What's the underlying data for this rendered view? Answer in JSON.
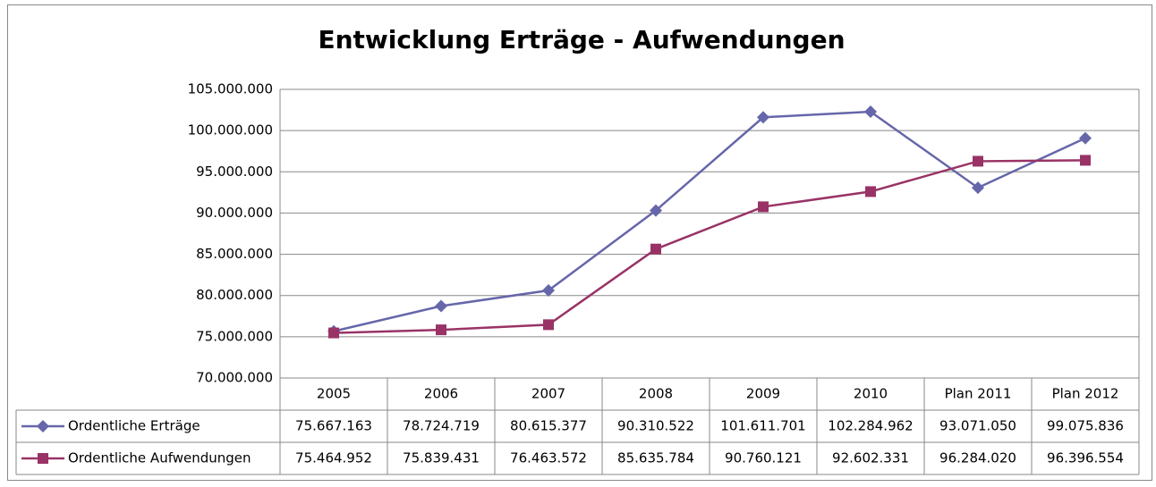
{
  "chart_data": {
    "type": "line",
    "title": "Entwicklung Erträge - Aufwendungen",
    "categories": [
      "2005",
      "2006",
      "2007",
      "2008",
      "2009",
      "2010",
      "Plan 2011",
      "Plan 2012"
    ],
    "series": [
      {
        "name": "Ordentliche Erträge",
        "color": "#6666aa",
        "marker": "diamond",
        "values": [
          75667163,
          78724719,
          80615377,
          90310522,
          101611701,
          102284962,
          93071050,
          99075836
        ],
        "value_labels": [
          "75.667.163",
          "78.724.719",
          "80.615.377",
          "90.310.522",
          "101.611.701",
          "102.284.962",
          "93.071.050",
          "99.075.836"
        ]
      },
      {
        "name": "Ordentliche Aufwendungen",
        "color": "#993366",
        "marker": "square",
        "values": [
          75464952,
          75839431,
          76463572,
          85635784,
          90760121,
          92602331,
          96284020,
          96396554
        ],
        "value_labels": [
          "75.464.952",
          "75.839.431",
          "76.463.572",
          "85.635.784",
          "90.760.121",
          "92.602.331",
          "96.284.020",
          "96.396.554"
        ]
      }
    ],
    "ylim": [
      70000000,
      105000000
    ],
    "yticks": [
      {
        "value": 70000000,
        "label": "70.000.000"
      },
      {
        "value": 75000000,
        "label": "75.000.000"
      },
      {
        "value": 80000000,
        "label": "80.000.000"
      },
      {
        "value": 85000000,
        "label": "85.000.000"
      },
      {
        "value": 90000000,
        "label": "90.000.000"
      },
      {
        "value": 95000000,
        "label": "95.000.000"
      },
      {
        "value": 100000000,
        "label": "100.000.000"
      },
      {
        "value": 105000000,
        "label": "105.000.000"
      }
    ],
    "grid": true,
    "data_table": true
  }
}
